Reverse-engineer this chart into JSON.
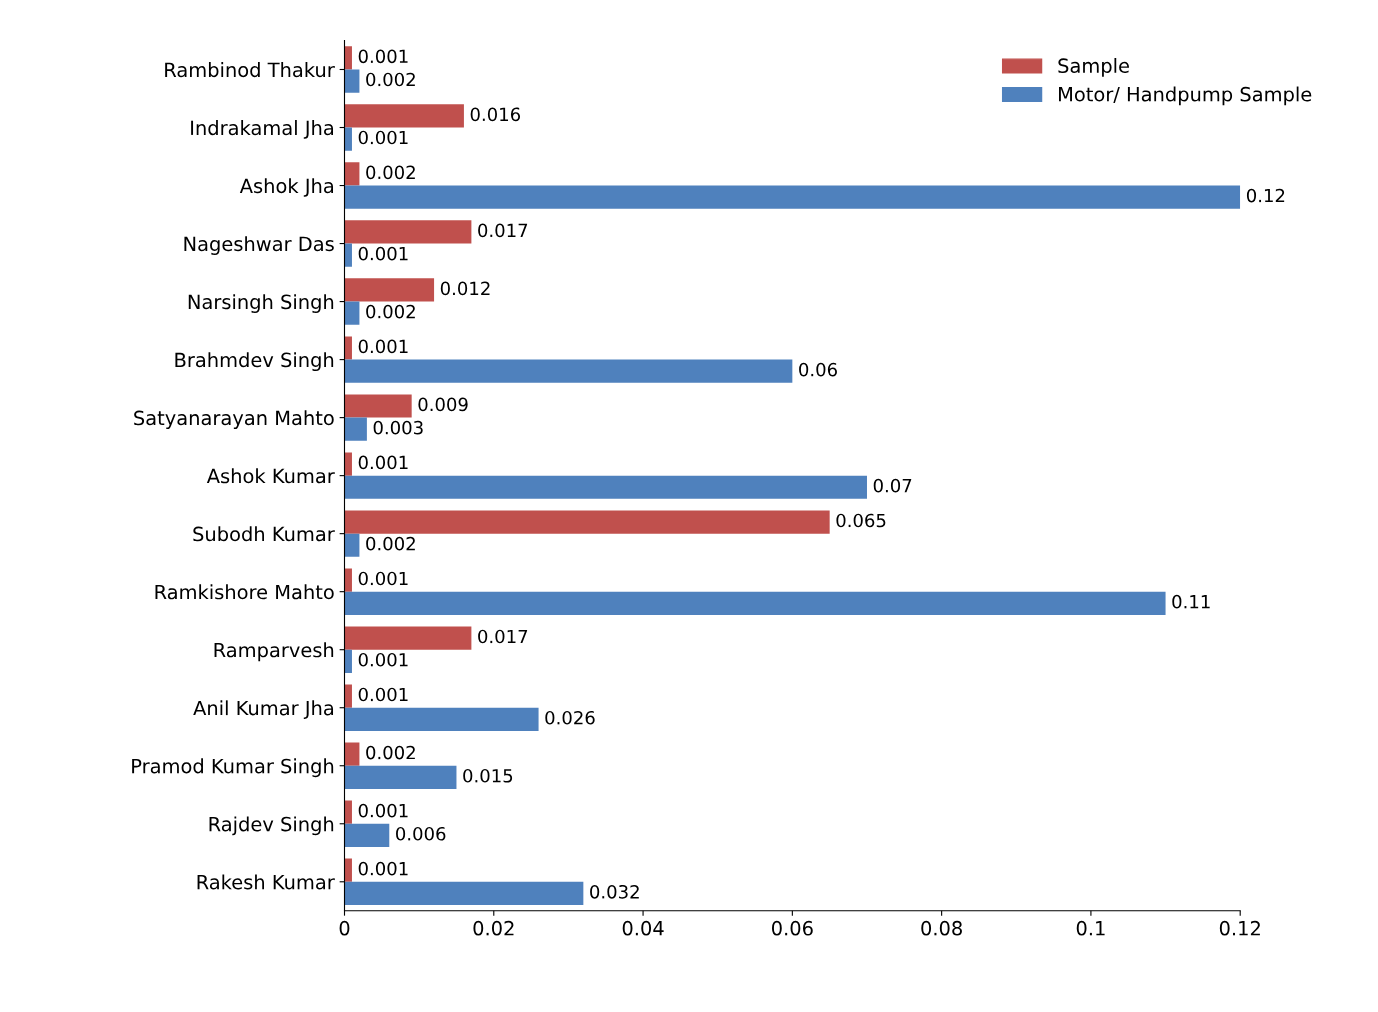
{
  "chart_data": {
    "type": "bar",
    "orientation": "horizontal",
    "categories": [
      "Rambinod Thakur",
      "Indrakamal Jha",
      "Ashok Jha",
      "Nageshwar Das",
      "Narsingh Singh",
      "Brahmdev Singh",
      "Satyanarayan Mahto",
      "Ashok Kumar",
      "Subodh Kumar",
      "Ramkishore Mahto",
      "Ramparvesh",
      "Anil Kumar Jha",
      "Pramod Kumar Singh",
      "Rajdev Singh",
      "Rakesh Kumar"
    ],
    "series": [
      {
        "name": "Sample",
        "color": "#c0504d",
        "values": [
          0.001,
          0.016,
          0.002,
          0.017,
          0.012,
          0.001,
          0.009,
          0.001,
          0.065,
          0.001,
          0.017,
          0.001,
          0.002,
          0.001,
          0.001
        ]
      },
      {
        "name": "Motor/ Handpump Sample",
        "color": "#4f81bd",
        "values": [
          0.002,
          0.001,
          0.12,
          0.001,
          0.002,
          0.06,
          0.003,
          0.07,
          0.002,
          0.11,
          0.001,
          0.026,
          0.015,
          0.006,
          0.032
        ]
      }
    ],
    "xlim": [
      0,
      0.12
    ],
    "xticks": [
      0,
      0.02,
      0.04,
      0.06,
      0.08,
      0.1,
      0.12
    ],
    "data_labels": true,
    "legend": "top right",
    "grid": false
  }
}
